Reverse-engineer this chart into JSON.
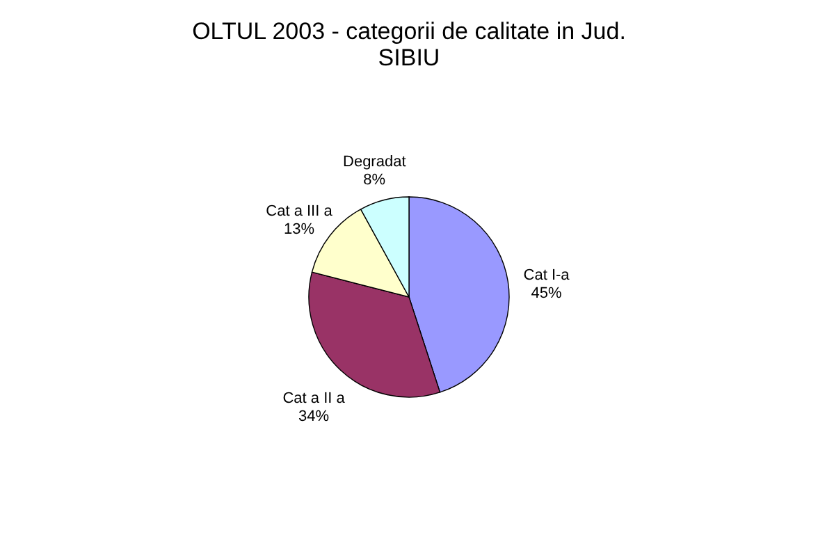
{
  "chart_data": {
    "type": "pie",
    "title": "OLTUL 2003 - categorii de calitate in Jud. SIBIU",
    "categories": [
      "Cat I-a",
      "Cat a II a",
      "Cat a III a",
      "Degradat"
    ],
    "values": [
      45,
      34,
      13,
      8
    ],
    "value_labels": [
      "45%",
      "34%",
      "13%",
      "8%"
    ],
    "colors": [
      "#9999ff",
      "#993366",
      "#ffffcc",
      "#ccffff"
    ],
    "legend": false
  }
}
